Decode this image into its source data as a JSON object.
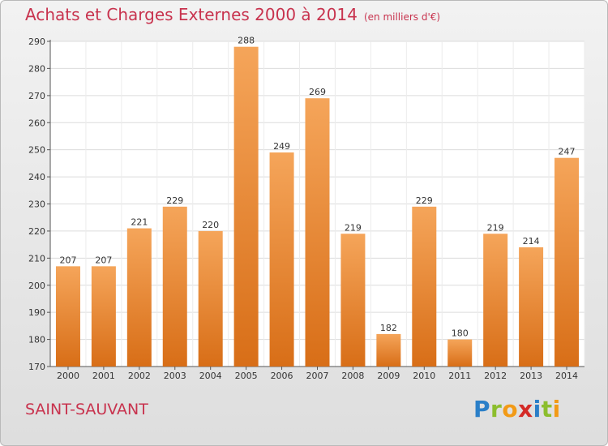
{
  "header": {
    "title": "Achats et Charges Externes 2000 à 2014",
    "unit": "(en milliers d'€)"
  },
  "footer": {
    "commune": "SAINT-SAUVANT",
    "logo_letters": [
      {
        "ch": "P",
        "color": "#2a7fc8"
      },
      {
        "ch": "r",
        "color": "#8cbe2d"
      },
      {
        "ch": "o",
        "color": "#f29a16"
      },
      {
        "ch": "x",
        "color": "#d42a26"
      },
      {
        "ch": "i",
        "color": "#2a7fc8"
      },
      {
        "ch": "t",
        "color": "#8cbe2d"
      },
      {
        "ch": "i",
        "color": "#f29a16"
      }
    ]
  },
  "colors": {
    "title": "#c8334e",
    "bar_top": "#f5a55a",
    "bar_bottom": "#d86e17"
  },
  "chart_data": {
    "type": "bar",
    "title": "Achats et Charges Externes 2000 à 2014",
    "subtitle": "(en milliers d'€)",
    "categories": [
      "2000",
      "2001",
      "2002",
      "2003",
      "2004",
      "2005",
      "2006",
      "2007",
      "2008",
      "2009",
      "2010",
      "2011",
      "2012",
      "2013",
      "2014"
    ],
    "values": [
      207,
      207,
      221,
      229,
      220,
      288,
      249,
      269,
      219,
      182,
      229,
      180,
      219,
      214,
      247
    ],
    "ylim": [
      170,
      290
    ],
    "yticks": [
      170,
      180,
      190,
      200,
      210,
      220,
      230,
      240,
      250,
      260,
      270,
      280,
      290
    ],
    "grid": true,
    "xlabel": "",
    "ylabel": ""
  }
}
